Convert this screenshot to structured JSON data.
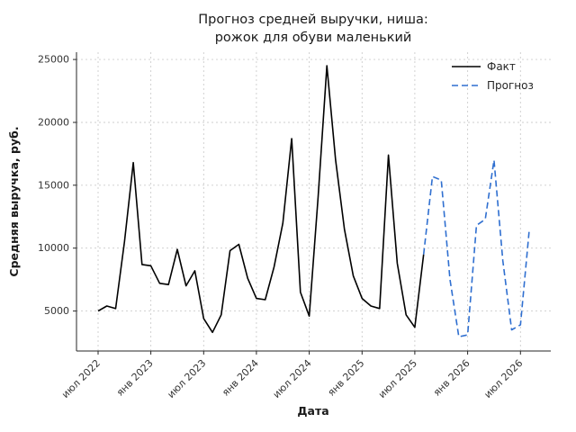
{
  "chart_data": {
    "type": "line",
    "title_line1": "Прогноз средней выручки, ниша:",
    "title_line2": "рожок для обуви маленький",
    "xlabel": "Дата",
    "ylabel": "Средняя выручка, руб.",
    "grid": {
      "visible": true,
      "style": "dashed",
      "color": "#cccccc"
    },
    "legend_position": "upper right",
    "x_base_month": "2022-07",
    "xlim_months": [
      -2.45,
      51.45
    ],
    "ylim": [
      1820,
      25580
    ],
    "y_ticks": [
      5000,
      10000,
      15000,
      20000,
      25000
    ],
    "x_ticks": [
      {
        "label": "июл 2022",
        "month": "2022-07"
      },
      {
        "label": "янв 2023",
        "month": "2023-01"
      },
      {
        "label": "июл 2023",
        "month": "2023-07"
      },
      {
        "label": "янв 2024",
        "month": "2024-01"
      },
      {
        "label": "июл 2024",
        "month": "2024-07"
      },
      {
        "label": "янв 2025",
        "month": "2025-01"
      },
      {
        "label": "июл 2025",
        "month": "2025-07"
      },
      {
        "label": "янв 2026",
        "month": "2026-01"
      },
      {
        "label": "июл 2026",
        "month": "2026-07"
      }
    ],
    "series": [
      {
        "name": "Факт",
        "style": "solid",
        "color": "#000000",
        "months": [
          "2022-07",
          "2022-08",
          "2022-09",
          "2022-10",
          "2022-11",
          "2022-12",
          "2023-01",
          "2023-02",
          "2023-03",
          "2023-04",
          "2023-05",
          "2023-06",
          "2023-07",
          "2023-08",
          "2023-09",
          "2023-10",
          "2023-11",
          "2023-12",
          "2024-01",
          "2024-02",
          "2024-03",
          "2024-04",
          "2024-05",
          "2024-06",
          "2024-07",
          "2024-08",
          "2024-09",
          "2024-10",
          "2024-11",
          "2024-12",
          "2025-01",
          "2025-02",
          "2025-03",
          "2025-04",
          "2025-05",
          "2025-06",
          "2025-07",
          "2025-08"
        ],
        "values": [
          5000,
          5400,
          5200,
          10500,
          16800,
          8700,
          8600,
          7200,
          7100,
          9900,
          7000,
          8200,
          4400,
          3300,
          4700,
          9800,
          10300,
          7600,
          6000,
          5900,
          8500,
          12000,
          18700,
          6500,
          4600,
          14000,
          24500,
          17000,
          11500,
          7800,
          6000,
          5400,
          5200,
          17400,
          8800,
          4700,
          3700,
          9500
        ]
      },
      {
        "name": "Прогноз",
        "style": "dashed",
        "color": "#2f6fd0",
        "months": [
          "2025-08",
          "2025-09",
          "2025-10",
          "2025-11",
          "2025-12",
          "2026-01",
          "2026-02",
          "2026-03",
          "2026-04",
          "2026-05",
          "2026-06",
          "2026-07",
          "2026-08"
        ],
        "values": [
          9500,
          15700,
          15400,
          7500,
          2950,
          3100,
          11800,
          12300,
          17000,
          9000,
          3500,
          3900,
          11400
        ]
      }
    ]
  }
}
